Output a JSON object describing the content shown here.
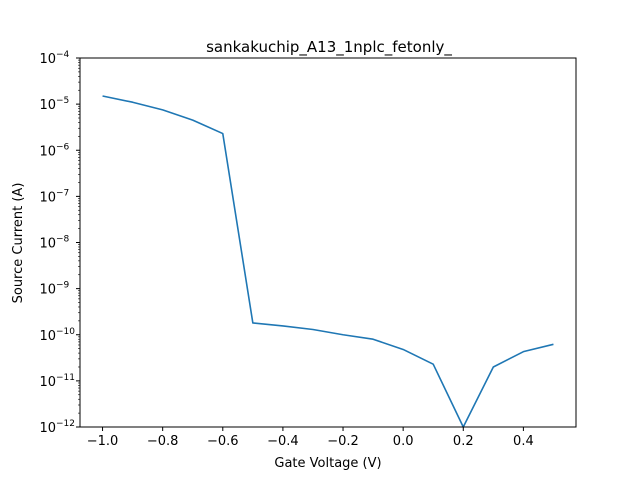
{
  "chart_data": {
    "type": "line",
    "title": "sankakuchip_A13_1nplc_fetonly_",
    "xlabel": "Gate Voltage (V)",
    "ylabel": "Source Current (A)",
    "xlim": [
      -1.075,
      0.575
    ],
    "ylim": [
      1e-12,
      0.0001
    ],
    "yscale": "log",
    "grid": false,
    "x_ticks": [
      {
        "value": -1.0,
        "label": "−1.0"
      },
      {
        "value": -0.8,
        "label": "−0.8"
      },
      {
        "value": -0.6,
        "label": "−0.6"
      },
      {
        "value": -0.4,
        "label": "−0.4"
      },
      {
        "value": -0.2,
        "label": "−0.2"
      },
      {
        "value": 0.0,
        "label": "0.0"
      },
      {
        "value": 0.2,
        "label": "0.2"
      },
      {
        "value": 0.4,
        "label": "0.4"
      }
    ],
    "y_ticks": [
      {
        "value": 1e-12,
        "base": "10",
        "exp": "−12"
      },
      {
        "value": 1e-11,
        "base": "10",
        "exp": "−11"
      },
      {
        "value": 1e-10,
        "base": "10",
        "exp": "−10"
      },
      {
        "value": 1e-09,
        "base": "10",
        "exp": "−9"
      },
      {
        "value": 1e-08,
        "base": "10",
        "exp": "−8"
      },
      {
        "value": 1e-07,
        "base": "10",
        "exp": "−7"
      },
      {
        "value": 1e-06,
        "base": "10",
        "exp": "−6"
      },
      {
        "value": 1e-05,
        "base": "10",
        "exp": "−5"
      },
      {
        "value": 0.0001,
        "base": "10",
        "exp": "−4"
      }
    ],
    "series": [
      {
        "color": "#1f77b4",
        "x": [
          -1.0,
          -0.9,
          -0.8,
          -0.7,
          -0.6,
          -0.5,
          -0.4,
          -0.3,
          -0.2,
          -0.1,
          0.0,
          0.1,
          0.2,
          0.3,
          0.4,
          0.5
        ],
        "y": [
          1.5e-05,
          1.1e-05,
          7.5e-06,
          4.5e-06,
          2.3e-06,
          1.8e-10,
          1.55e-10,
          1.3e-10,
          1e-10,
          8e-11,
          4.8e-11,
          2.3e-11,
          1e-12,
          2e-11,
          4.3e-11,
          6.2e-11
        ]
      }
    ]
  }
}
